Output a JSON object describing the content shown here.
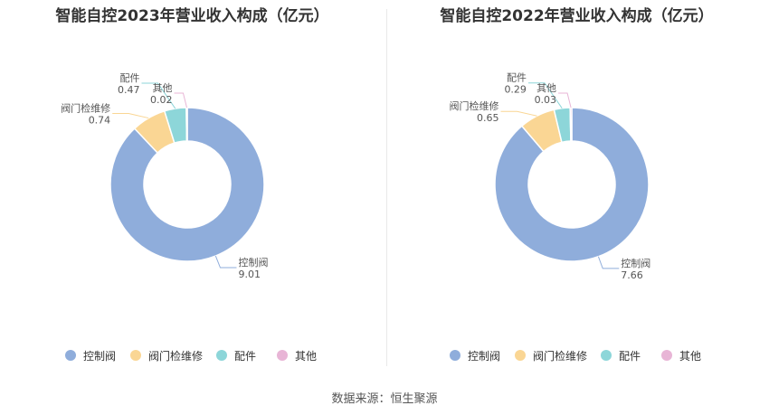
{
  "colors": {
    "控制阀": "#8faddb",
    "阀门检维修": "#fad694",
    "配件": "#8dd6d9",
    "其他": "#e8b5d6"
  },
  "chart_data": [
    {
      "type": "pie",
      "style": "donut",
      "title": "智能自控2023年营业收入构成（亿元）",
      "categories": [
        "控制阀",
        "阀门检维修",
        "配件",
        "其他"
      ],
      "values": [
        9.01,
        0.74,
        0.47,
        0.02
      ],
      "labels": [
        "9.01",
        "0.74",
        "0.47",
        "0.02"
      ],
      "legend": "bottom"
    },
    {
      "type": "pie",
      "style": "donut",
      "title": "智能自控2022年营业收入构成（亿元）",
      "categories": [
        "控制阀",
        "阀门检维修",
        "配件",
        "其他"
      ],
      "values": [
        7.66,
        0.65,
        0.29,
        0.03
      ],
      "labels": [
        "7.66",
        "0.65",
        "0.29",
        "0.03"
      ],
      "legend": "bottom"
    }
  ],
  "legend_items": [
    "控制阀",
    "阀门检维修",
    "配件",
    "其他"
  ],
  "source": "数据来源：恒生聚源"
}
